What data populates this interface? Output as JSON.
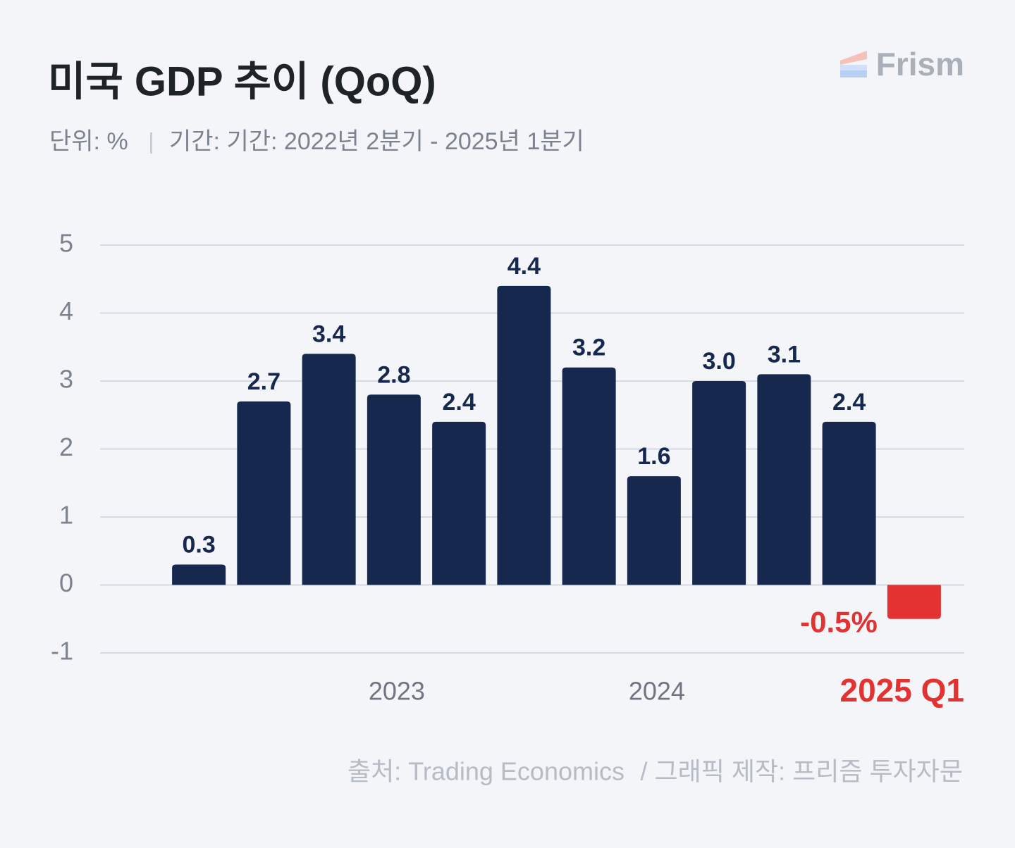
{
  "brand": "Frism",
  "chart_data": {
    "type": "bar",
    "title": "미국 GDP 추이 (QoQ)",
    "subtitle": [
      "단위: %",
      "기간: 기간: 2022년 2분기 - 2025년 1분기"
    ],
    "source": [
      "출처: Trading Economics",
      "/ 그래픽 제작: 프리즘 투자자문"
    ],
    "categories": [
      null,
      null,
      null,
      "2023",
      null,
      null,
      null,
      "2024",
      null,
      null,
      null,
      "2025 Q1"
    ],
    "values": [
      0.3,
      2.7,
      3.4,
      2.8,
      2.4,
      4.4,
      3.2,
      1.6,
      3.0,
      3.1,
      2.4,
      -0.5
    ],
    "value_labels": [
      "0.3",
      "2.7",
      "3.4",
      "2.8",
      "2.4",
      "4.4",
      "3.2",
      "1.6",
      "3.0",
      "3.1",
      "2.4",
      "-0.5%"
    ],
    "color": "#16284d",
    "colors": [
      "#16284d",
      "#16284d",
      "#16284d",
      "#16284d",
      "#16284d",
      "#16284d",
      "#16284d",
      "#16284d",
      "#16284d",
      "#16284d",
      "#16284d",
      "#e23232"
    ],
    "ylim": [
      -1,
      5
    ],
    "yticks": [
      -1,
      0,
      1,
      2,
      3,
      4,
      5
    ],
    "grid": true
  }
}
